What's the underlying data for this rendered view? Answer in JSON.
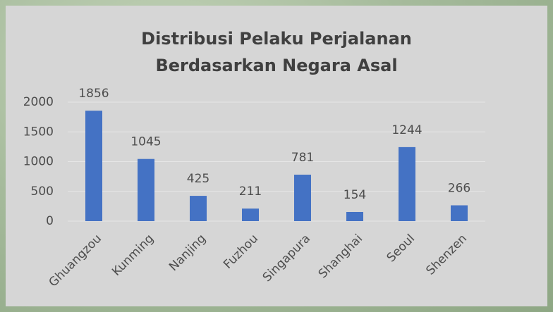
{
  "chart_data": {
    "type": "bar",
    "title": "Distribusi Pelaku Perjalanan Berdasarkan Negara Asal",
    "categories": [
      "Ghuangzou",
      "Kunming",
      "Nanjing",
      "Fuzhou",
      "Singapura",
      "Shanghai",
      "Seoul",
      "Shenzen"
    ],
    "values": [
      1856,
      1045,
      425,
      211,
      781,
      154,
      1244,
      266
    ],
    "color": "#4472c4",
    "ylim": [
      0,
      2000
    ],
    "yticks": [
      0,
      500,
      1000,
      1500,
      2000
    ],
    "grid": true
  }
}
